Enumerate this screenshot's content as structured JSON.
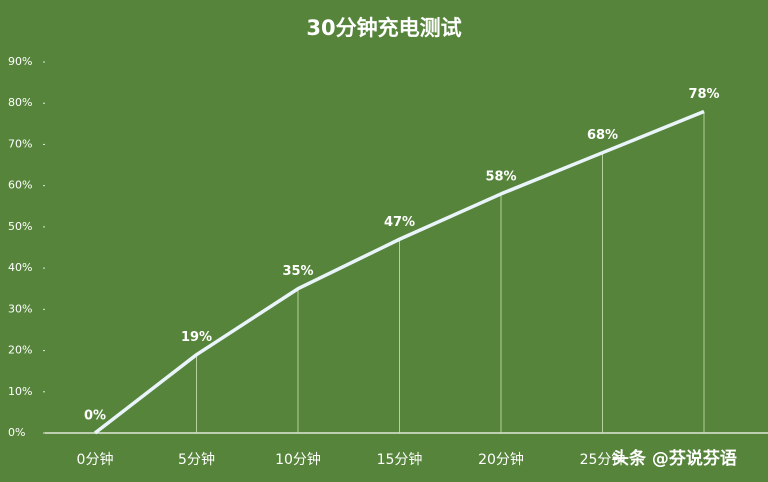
{
  "chart_data": {
    "type": "line",
    "title": "30分钟充电测试",
    "categories": [
      "0分钟",
      "5分钟",
      "10分钟",
      "15分钟",
      "20分钟",
      "25分钟",
      null
    ],
    "values": [
      0,
      19,
      35,
      47,
      58,
      68,
      78
    ],
    "value_labels": [
      "0%",
      "19%",
      "35%",
      "47%",
      "58%",
      "68%",
      "78%"
    ],
    "color": "#eaf4fb",
    "ylim": [
      0,
      90
    ],
    "yticks": [
      {
        "value": 0,
        "label": "0%"
      },
      {
        "value": 10,
        "label": "10%"
      },
      {
        "value": 20,
        "label": "20%"
      },
      {
        "value": 30,
        "label": "30%"
      },
      {
        "value": 40,
        "label": "40%"
      },
      {
        "value": 50,
        "label": "50%"
      },
      {
        "value": 60,
        "label": "60%"
      },
      {
        "value": 70,
        "label": "70%"
      },
      {
        "value": 80,
        "label": "80%"
      },
      {
        "value": 90,
        "label": "90%"
      }
    ],
    "drop_lines": true,
    "watermark": "头条 @芬说芬语"
  }
}
